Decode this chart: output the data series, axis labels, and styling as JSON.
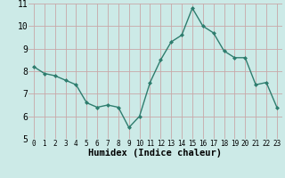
{
  "x": [
    0,
    1,
    2,
    3,
    4,
    5,
    6,
    7,
    8,
    9,
    10,
    11,
    12,
    13,
    14,
    15,
    16,
    17,
    18,
    19,
    20,
    21,
    22,
    23
  ],
  "y": [
    8.2,
    7.9,
    7.8,
    7.6,
    7.4,
    6.6,
    6.4,
    6.5,
    6.4,
    5.5,
    6.0,
    7.5,
    8.5,
    9.3,
    9.6,
    10.8,
    10.0,
    9.7,
    8.9,
    8.6,
    8.6,
    7.4,
    7.5,
    6.4
  ],
  "xlabel": "Humidex (Indice chaleur)",
  "ylim": [
    5,
    11
  ],
  "xlim": [
    -0.5,
    23.5
  ],
  "yticks": [
    5,
    6,
    7,
    8,
    9,
    10,
    11
  ],
  "xticks": [
    0,
    1,
    2,
    3,
    4,
    5,
    6,
    7,
    8,
    9,
    10,
    11,
    12,
    13,
    14,
    15,
    16,
    17,
    18,
    19,
    20,
    21,
    22,
    23
  ],
  "line_color": "#2e7d6e",
  "marker": "D",
  "marker_size": 2.0,
  "bg_color": "#cceae7",
  "grid_color": "#c8a8a8",
  "xlabel_fontsize": 7.5,
  "ytick_fontsize": 7,
  "xtick_fontsize": 5.5
}
